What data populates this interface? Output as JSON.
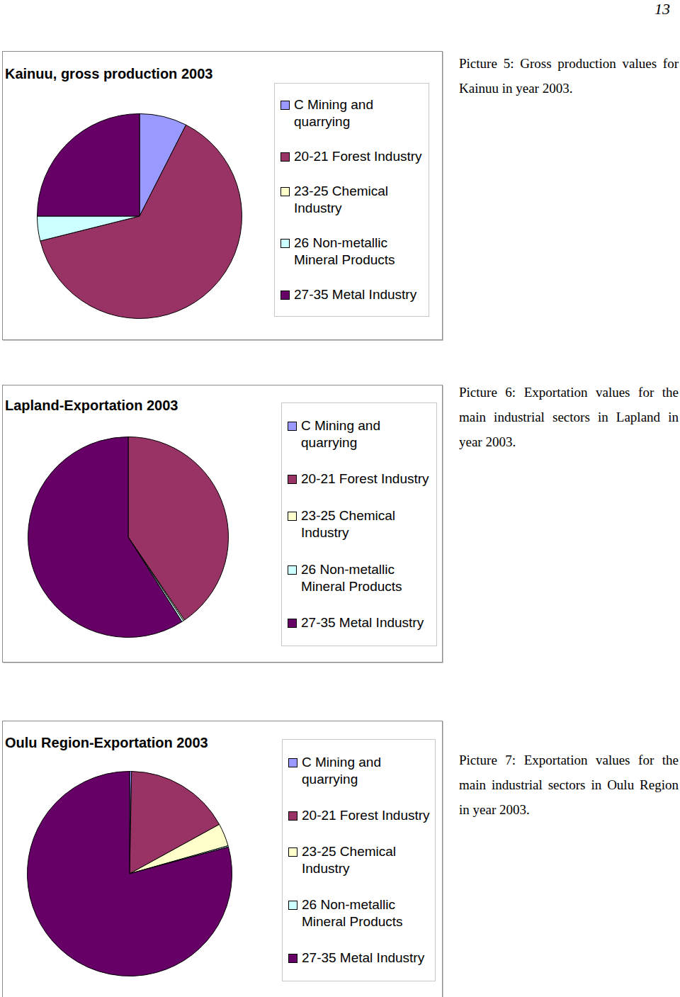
{
  "page_number": "13",
  "chart_data": [
    {
      "type": "pie",
      "title": "Kainuu, gross production 2003",
      "categories": [
        "C Mining and quarrying",
        "20-21 Forest Industry",
        "23-25 Chemical Industry",
        "26 Non-metallic Mineral Products",
        "27-35 Metal Industry"
      ],
      "values": [
        7.5,
        63.6,
        0,
        3.9,
        25
      ],
      "colors": [
        "#9999ff",
        "#993366",
        "#ffffcc",
        "#ccffff",
        "#660066"
      ],
      "legend": "right",
      "caption": "Picture 5: Gross production values for Kainuu in year 2003."
    },
    {
      "type": "pie",
      "title": "Lapland-Exportation 2003",
      "categories": [
        "C Mining and quarrying",
        "20-21 Forest Industry",
        "23-25 Chemical Industry",
        "26 Non-metallic Mineral Products",
        "27-35 Metal Industry"
      ],
      "values": [
        0,
        40.5,
        0.2,
        0.3,
        59
      ],
      "colors": [
        "#9999ff",
        "#993366",
        "#ffffcc",
        "#ccffff",
        "#660066"
      ],
      "legend": "right",
      "caption": "Picture 6: Exportation values for the main industrial sectors in Lapland in year 2003."
    },
    {
      "type": "pie",
      "title": "Oulu Region-Exportation 2003",
      "categories": [
        "C Mining and quarrying",
        "20-21 Forest Industry",
        "23-25 Chemical Industry",
        "26 Non-metallic Mineral Products",
        "27-35 Metal Industry"
      ],
      "values": [
        0.3,
        16.7,
        3.6,
        0.2,
        79.2
      ],
      "colors": [
        "#9999ff",
        "#993366",
        "#ffffcc",
        "#ccffff",
        "#660066"
      ],
      "legend": "right",
      "caption": "Picture 7: Exportation values for the main industrial sectors in Oulu Region in year 2003."
    }
  ]
}
